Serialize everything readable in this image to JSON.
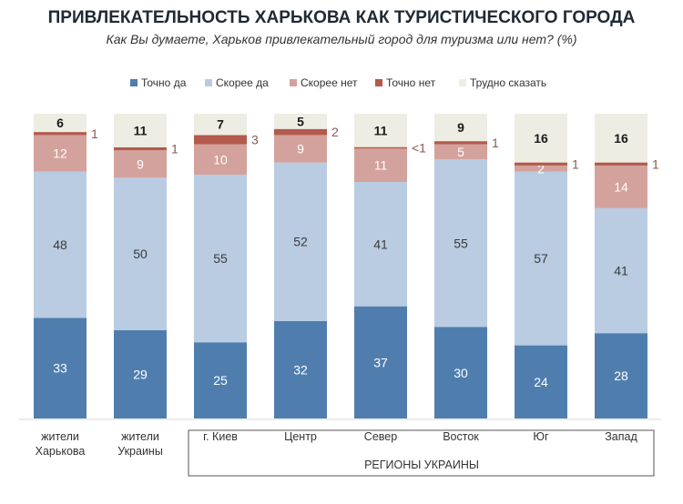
{
  "chart_data": {
    "type": "bar",
    "stacked": true,
    "title": "ПРИВЛЕКАТЕЛЬНОСТЬ ХАРЬКОВА КАК ТУРИСТИЧЕСКОГО ГОРОДА",
    "subtitle": "Как Вы думаете, Харьков привлекательный город для туризма или нет? (%)",
    "categories": [
      [
        "жители",
        "Харькова"
      ],
      [
        "жители",
        "Украины"
      ],
      [
        "г. Киев"
      ],
      [
        "Центр"
      ],
      [
        "Север"
      ],
      [
        "Восток"
      ],
      [
        "Юг"
      ],
      [
        "Запад"
      ]
    ],
    "group_label": "РЕГИОНЫ УКРАИНЫ",
    "legend_position": "top",
    "grid": false,
    "series": [
      {
        "name": "Точно да",
        "color": "#4f7eae",
        "label_color": "#ffffff",
        "values": [
          33,
          29,
          25,
          32,
          37,
          30,
          24,
          28
        ],
        "labels": [
          "33",
          "29",
          "25",
          "32",
          "37",
          "30",
          "24",
          "28"
        ]
      },
      {
        "name": "Скорее да",
        "color": "#b9cce1",
        "label_color": "#3a3a3a",
        "values": [
          48,
          50,
          55,
          52,
          41,
          55,
          57,
          41
        ],
        "labels": [
          "48",
          "50",
          "55",
          "52",
          "41",
          "55",
          "57",
          "41"
        ]
      },
      {
        "name": "Скорее нет",
        "color": "#d4a29c",
        "label_color": "#ffffff",
        "values": [
          12,
          9,
          10,
          9,
          11,
          5,
          2,
          14
        ],
        "labels": [
          "12",
          "9",
          "10",
          "9",
          "11",
          "5",
          "2",
          "14"
        ]
      },
      {
        "name": "Точно нет",
        "color": "#b35a4c",
        "label_color": "#8a5a52",
        "values": [
          1,
          1,
          3,
          2,
          0.5,
          1,
          1,
          1
        ],
        "labels": [
          "1",
          "1",
          "3",
          "2",
          "<1",
          "1",
          "1",
          "1"
        ],
        "label_outside": true
      },
      {
        "name": "Трудно сказать",
        "color": "#eeede3",
        "label_color": "#1a1a1a",
        "values": [
          6,
          11,
          7,
          5,
          11,
          9,
          16,
          16
        ],
        "labels": [
          "6",
          "11",
          "7",
          "5",
          "11",
          "9",
          "16",
          "16"
        ]
      }
    ]
  }
}
